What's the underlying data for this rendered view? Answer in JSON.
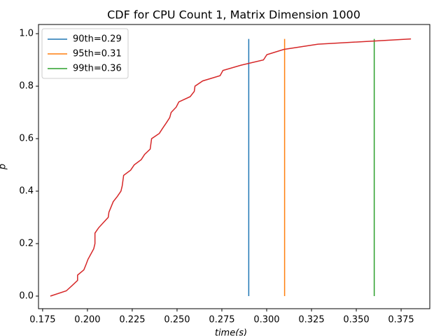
{
  "chart_data": {
    "type": "line",
    "title": "CDF for CPU Count 1, Matrix Dimension 1000",
    "xlabel": "time(s)",
    "ylabel": "p",
    "xlim": [
      0.1727,
      0.391
    ],
    "ylim": [
      -0.048,
      1.035
    ],
    "xticks": [
      0.175,
      {
        "value": 0.2,
        "label": "0.200"
      },
      0.225,
      {
        "value": 0.25,
        "label": "0.250"
      },
      0.275,
      {
        "value": 0.3,
        "label": "0.300"
      },
      0.325,
      {
        "value": 0.35,
        "label": "0.350"
      },
      0.375
    ],
    "yticks": [
      {
        "value": 0,
        "label": "0.0"
      },
      0.2,
      0.4,
      0.6,
      0.8,
      {
        "value": 1,
        "label": "1.0"
      }
    ],
    "legend": "upper left",
    "series": [
      {
        "name": "90th=0.29",
        "color": "#1f77b4",
        "x": [
          0.29,
          0.29
        ],
        "values": [
          0,
          0.98
        ]
      },
      {
        "name": "95th=0.31",
        "color": "#ff7f0e",
        "x": [
          0.31,
          0.31
        ],
        "values": [
          0,
          0.98
        ]
      },
      {
        "name": "99th=0.36",
        "color": "#2ca02c",
        "x": [
          0.36,
          0.36
        ],
        "values": [
          0,
          0.98
        ]
      },
      {
        "color": "#d62728",
        "x": [
          0.1793,
          0.1882,
          0.1914,
          0.1945,
          0.1945,
          0.198,
          0.1992,
          0.2003,
          0.2019,
          0.2035,
          0.2042,
          0.2042,
          0.2042,
          0.2062,
          0.2089,
          0.2116,
          0.212,
          0.2132,
          0.2144,
          0.2167,
          0.2187,
          0.2194,
          0.2198,
          0.2202,
          0.2241,
          0.2261,
          0.23,
          0.2319,
          0.235,
          0.2354,
          0.2358,
          0.2401,
          0.242,
          0.244,
          0.2459,
          0.2467,
          0.2495,
          0.251,
          0.2573,
          0.2596,
          0.26,
          0.2643,
          0.274,
          0.2756,
          0.2857,
          0.2982,
          0.3001,
          0.3095,
          0.3286,
          0.3805
        ],
        "values": [
          0,
          0.02,
          0.04,
          0.06,
          0.08,
          0.1,
          0.12,
          0.14,
          0.16,
          0.18,
          0.2,
          0.22,
          0.24,
          0.26,
          0.28,
          0.3,
          0.32,
          0.34,
          0.36,
          0.38,
          0.4,
          0.42,
          0.44,
          0.46,
          0.48,
          0.5,
          0.52,
          0.54,
          0.56,
          0.58,
          0.6,
          0.62,
          0.64,
          0.66,
          0.68,
          0.7,
          0.72,
          0.74,
          0.76,
          0.78,
          0.8,
          0.82,
          0.84,
          0.86,
          0.88,
          0.9,
          0.92,
          0.94,
          0.96,
          0.98
        ]
      }
    ]
  }
}
